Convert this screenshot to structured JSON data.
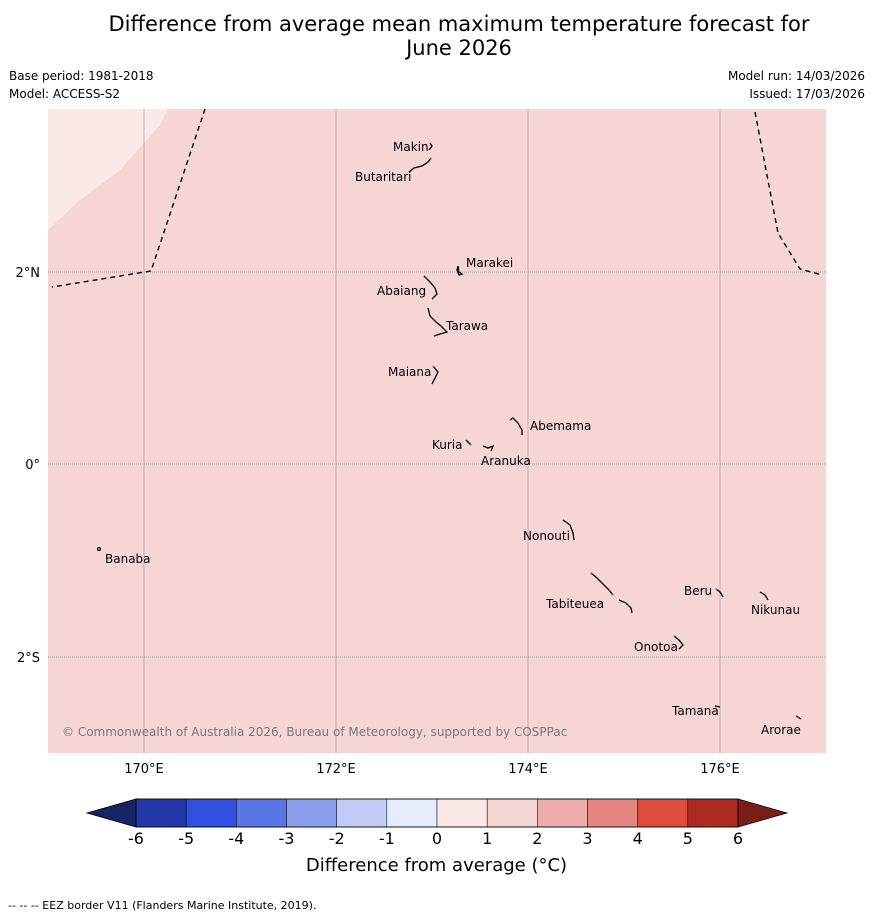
{
  "title_line1": "Difference from average mean maximum temperature forecast for",
  "title_line2": "June 2026",
  "meta": {
    "base_period": "Base period: 1981-2018",
    "model": "Model: ACCESS-S2",
    "model_run": "Model run: 14/03/2026",
    "issued": "Issued: 17/03/2026"
  },
  "map": {
    "lon_ticks": [
      "170°E",
      "172°E",
      "174°E",
      "176°E"
    ],
    "lat_ticks": [
      "2°N",
      "0°",
      "2°S"
    ],
    "copyright": "© Commonwealth of Australia 2026, Bureau of Meteorology, supported by COSPPac",
    "islands": [
      "Makin",
      "Butaritari",
      "Marakei",
      "Abaiang",
      "Tarawa",
      "Maiana",
      "Abemama",
      "Kuria",
      "Aranuka",
      "Nonouti",
      "Banaba",
      "Beru",
      "Nikunau",
      "Tabiteuea",
      "Onotoa",
      "Tamana",
      "Arorae"
    ]
  },
  "colorbar": {
    "title": "Difference from average (°C)",
    "tick_labels": [
      "-6",
      "-5",
      "-4",
      "-3",
      "-2",
      "-1",
      "0",
      "1",
      "2",
      "3",
      "4",
      "5",
      "6"
    ],
    "colors": [
      "#2338a8",
      "#3150e0",
      "#5a76e6",
      "#8a9fee",
      "#c2cdf7",
      "#e6ebfb",
      "#fbe9e7",
      "#f5d6d4",
      "#edaeab",
      "#e68680",
      "#dc4c3f",
      "#ab2a22"
    ],
    "under_color": "#172568",
    "over_color": "#7a1f17",
    "field_color": "#f5d6d4",
    "field_color_light": "#fbe9e7"
  },
  "footer": "--  --  -- EEZ border V11 (Flanders Marine Institute, 2019)."
}
